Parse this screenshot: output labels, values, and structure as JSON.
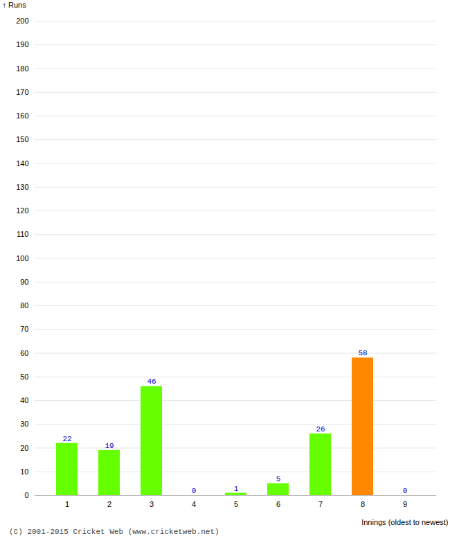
{
  "chart_data": {
    "type": "bar",
    "categories": [
      "1",
      "2",
      "3",
      "4",
      "5",
      "6",
      "7",
      "8",
      "9"
    ],
    "values": [
      22,
      19,
      46,
      0,
      1,
      5,
      26,
      58,
      0
    ],
    "colors": [
      "#66ff00",
      "#66ff00",
      "#66ff00",
      "#66ff00",
      "#66ff00",
      "#66ff00",
      "#66ff00",
      "#ff8800",
      "#66ff00"
    ],
    "xlabel": "Innings (oldest to newest)",
    "ylabel": "Runs",
    "ylim": [
      0,
      200
    ],
    "yticks": [
      0,
      10,
      20,
      30,
      40,
      50,
      60,
      70,
      80,
      90,
      100,
      110,
      120,
      130,
      140,
      150,
      160,
      170,
      180,
      190,
      200
    ],
    "grid": true,
    "data_labels": true,
    "annotations": [
      "(C) 2001-2015 Cricket Web (www.cricketweb.net)"
    ]
  }
}
